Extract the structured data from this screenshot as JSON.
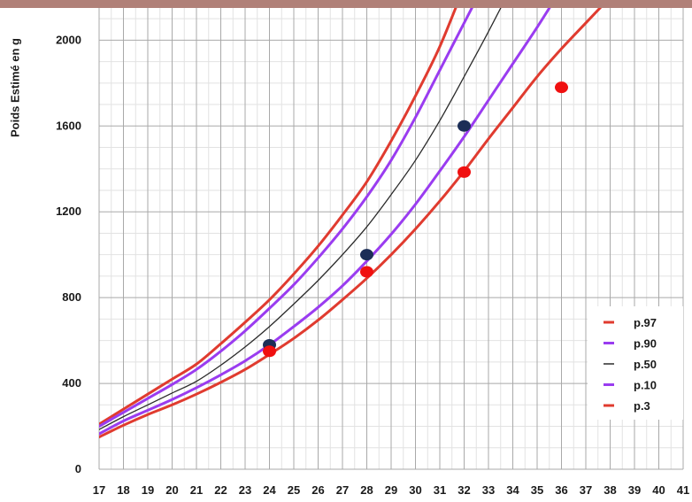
{
  "chart_data": {
    "type": "line",
    "title": "",
    "ylabel": "Poids Estimé en g",
    "xlabel": "",
    "xlim": [
      17,
      41
    ],
    "ylim": [
      0,
      2150
    ],
    "x_ticks": [
      17,
      18,
      19,
      20,
      21,
      22,
      23,
      24,
      25,
      26,
      27,
      28,
      29,
      30,
      31,
      32,
      33,
      34,
      35,
      36,
      37,
      38,
      39,
      40,
      41
    ],
    "y_ticks": [
      0,
      400,
      800,
      1200,
      1600,
      2000
    ],
    "grid": true,
    "legend_position": "bottom-right",
    "series": [
      {
        "name": "p.97",
        "color": "#e03b2f",
        "width": 3,
        "x": [
          17,
          18,
          19,
          20,
          21,
          22,
          23,
          24,
          25,
          26,
          27,
          28,
          29,
          30,
          31,
          32
        ],
        "y": [
          210,
          280,
          350,
          420,
          490,
          585,
          685,
          790,
          910,
          1040,
          1185,
          1340,
          1530,
          1740,
          1970,
          2250
        ]
      },
      {
        "name": "p.90",
        "color": "#9a3cf0",
        "width": 3,
        "x": [
          17,
          18,
          19,
          20,
          21,
          22,
          23,
          24,
          25,
          26,
          27,
          28,
          29,
          30,
          31,
          32,
          33
        ],
        "y": [
          200,
          265,
          330,
          395,
          465,
          550,
          645,
          750,
          860,
          985,
          1120,
          1270,
          1440,
          1640,
          1860,
          2080,
          2300
        ]
      },
      {
        "name": "p.50",
        "color": "#2a2a2a",
        "width": 1.3,
        "x": [
          17,
          18,
          19,
          20,
          21,
          22,
          23,
          24,
          25,
          26,
          27,
          28,
          29,
          30,
          31,
          32,
          33,
          34
        ],
        "y": [
          185,
          245,
          300,
          355,
          410,
          485,
          570,
          665,
          770,
          880,
          1000,
          1130,
          1280,
          1440,
          1625,
          1830,
          2040,
          2260
        ]
      },
      {
        "name": "p.10",
        "color": "#9a3cf0",
        "width": 3,
        "x": [
          17,
          18,
          19,
          20,
          21,
          22,
          23,
          24,
          25,
          26,
          27,
          28,
          29,
          30,
          31,
          32,
          33,
          34,
          35,
          36
        ],
        "y": [
          165,
          225,
          275,
          325,
          380,
          440,
          505,
          580,
          665,
          755,
          855,
          970,
          1095,
          1235,
          1390,
          1550,
          1720,
          1890,
          2060,
          2240
        ]
      },
      {
        "name": "p.3",
        "color": "#e03b2f",
        "width": 3,
        "x": [
          17,
          18,
          19,
          20,
          21,
          22,
          23,
          24,
          25,
          26,
          27,
          28,
          29,
          30,
          31,
          32,
          33,
          34,
          35,
          36,
          37,
          38
        ],
        "y": [
          150,
          205,
          255,
          300,
          350,
          405,
          465,
          535,
          610,
          695,
          790,
          890,
          1000,
          1120,
          1250,
          1390,
          1540,
          1685,
          1830,
          1960,
          2080,
          2200
        ]
      }
    ],
    "points": [
      {
        "group": "navy",
        "color": "#1c2e57",
        "x": 24,
        "y": 580
      },
      {
        "group": "navy",
        "color": "#1c2e57",
        "x": 28,
        "y": 1000
      },
      {
        "group": "navy",
        "color": "#1c2e57",
        "x": 32,
        "y": 1600
      },
      {
        "group": "red",
        "color": "#f01010",
        "x": 24,
        "y": 550
      },
      {
        "group": "red",
        "color": "#f01010",
        "x": 28,
        "y": 920
      },
      {
        "group": "red",
        "color": "#f01010",
        "x": 32,
        "y": 1385
      },
      {
        "group": "red",
        "color": "#f01010",
        "x": 36,
        "y": 1780
      }
    ]
  }
}
